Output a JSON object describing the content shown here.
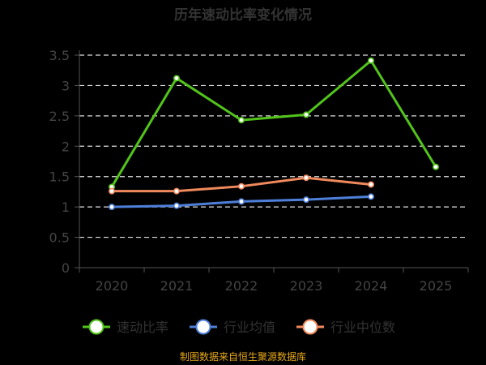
{
  "chart_data": {
    "type": "line",
    "title": "历年速动比率变化情况",
    "categories": [
      "2020",
      "2021",
      "2022",
      "2023",
      "2024",
      "2025"
    ],
    "ylim": [
      0,
      3.5
    ],
    "yticks": [
      "0",
      "0.5",
      "1",
      "1.5",
      "2",
      "2.5",
      "3",
      "3.5"
    ],
    "grid": true,
    "legend_position": "bottom",
    "series": [
      {
        "name": "速动比率",
        "color": "#52c41a",
        "values": [
          1.33,
          3.12,
          2.43,
          2.52,
          3.41,
          1.66
        ]
      },
      {
        "name": "行业均值",
        "color": "#4e7fd9",
        "values": [
          1.0,
          1.02,
          1.09,
          1.12,
          1.17,
          null
        ]
      },
      {
        "name": "行业中位数",
        "color": "#f08a5d",
        "values": [
          1.26,
          1.26,
          1.34,
          1.48,
          1.37,
          null
        ]
      }
    ]
  },
  "source": "制图数据来自恒生聚源数据库"
}
